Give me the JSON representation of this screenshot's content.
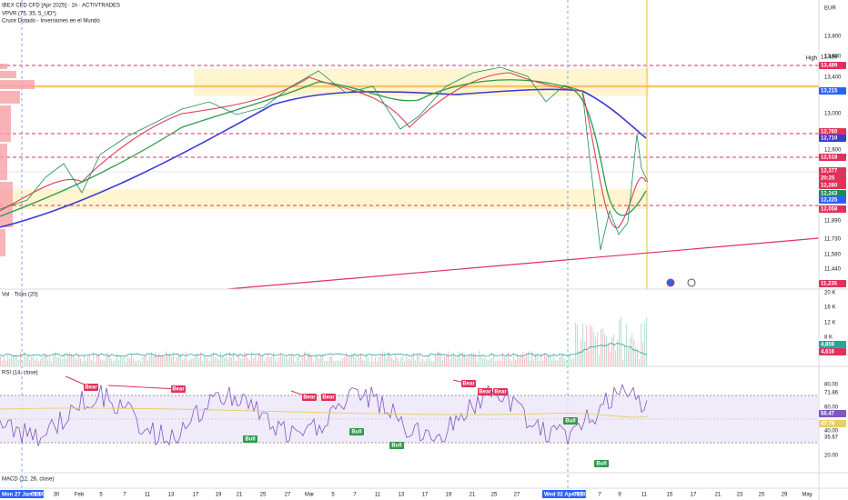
{
  "header": {
    "symbol": "IBEX CFD CFD [Apr 2025] · 1h · ACTIVTRADES",
    "indicator_1": "VPVR (75, 35, 5_UD*)",
    "indicator_2": "Cruce Dotado - Inversiones en el Mundo"
  },
  "price_axis": {
    "currency": "EUR",
    "labels": [
      "13,800",
      "13,600",
      "13,400",
      "13,000",
      "12,600",
      "11,890",
      "11,730",
      "11,580",
      "11,440"
    ],
    "high_label": "High",
    "tags": [
      "13,499",
      "13,489",
      "13,215",
      "12,760",
      "12,710",
      "12,518",
      "12,377",
      "20:25",
      "12,260",
      "12,243",
      "12,225",
      "12,058",
      "11,235"
    ]
  },
  "volume_pane": {
    "title": "Vol · Ticks (20)",
    "labels": [
      "20 K",
      "16 K",
      "12 K",
      "8 K"
    ],
    "tags": [
      "4,859",
      "4,616"
    ]
  },
  "rsi_pane": {
    "title": "RSI (14, close)",
    "labels": [
      "80.00",
      "60.00",
      "40.00",
      "20.00"
    ],
    "tags": [
      "71.86",
      "56.47",
      "47.79",
      "35.67"
    ],
    "bear_label": "Bear",
    "bull_label": "Bull"
  },
  "macd_pane": {
    "title": "MACD (12, 26, close)"
  },
  "time_axis": {
    "start": "Mon 27 Jan '25",
    "start_time": "08:00",
    "marker": "Wed 02 Apr '25",
    "marker_time": "09:00",
    "labels": [
      "30",
      "Feb",
      "5",
      "7",
      "11",
      "13",
      "17",
      "19",
      "21",
      "25",
      "27",
      "Mar",
      "5",
      "7",
      "11",
      "13",
      "17",
      "19",
      "21",
      "25",
      "27",
      "7",
      "9",
      "11",
      "15",
      "17",
      "21",
      "23",
      "25",
      "29",
      "May"
    ]
  }
}
